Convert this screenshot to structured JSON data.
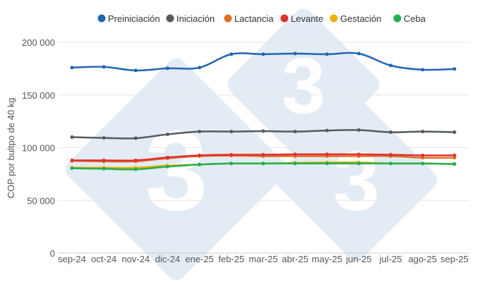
{
  "chart_data": {
    "type": "line",
    "title": "",
    "xlabel": "",
    "ylabel": "COP por bultpo de 40 kg",
    "ylim": [
      0,
      200000
    ],
    "yticks": [
      0,
      50000,
      100000,
      150000,
      200000
    ],
    "ytick_labels": [
      "0",
      "50 000",
      "100 000",
      "150 000",
      "200 000"
    ],
    "grid": true,
    "legend_position": "top",
    "categories": [
      "sep-24",
      "oct-24",
      "nov-24",
      "dic-24",
      "ene-25",
      "feb-25",
      "mar-25",
      "abr-25",
      "may-25",
      "jun-25",
      "jul-25",
      "ago-25",
      "sep-25"
    ],
    "series": [
      {
        "name": "Preiniciación",
        "color": "#2166b0",
        "values": [
          176000,
          176700,
          173300,
          175300,
          176000,
          188700,
          188700,
          189300,
          188700,
          189300,
          178000,
          174000,
          174700
        ]
      },
      {
        "name": "Iniciación",
        "color": "#555a60",
        "values": [
          110000,
          109300,
          109000,
          112700,
          115300,
          115300,
          115700,
          115300,
          116300,
          116700,
          114700,
          115300,
          114700
        ]
      },
      {
        "name": "Lactancia",
        "color": "#e07020",
        "values": [
          87500,
          87000,
          87000,
          90000,
          92000,
          92500,
          92000,
          92000,
          92000,
          92000,
          92000,
          90500,
          90500
        ]
      },
      {
        "name": "Levante",
        "color": "#e03030",
        "values": [
          88000,
          88000,
          88000,
          90700,
          92700,
          93300,
          93300,
          93700,
          93700,
          93700,
          93300,
          92700,
          92700
        ]
      },
      {
        "name": "Gestación",
        "color": "#f0b000",
        "values": [
          81000,
          81000,
          81000,
          83000,
          84000,
          85000,
          85000,
          85500,
          86000,
          86000,
          85000,
          85000,
          84500
        ]
      },
      {
        "name": "Ceba",
        "color": "#20b050",
        "values": [
          80500,
          80000,
          79500,
          82000,
          84000,
          85000,
          85000,
          85000,
          85000,
          85000,
          85000,
          85000,
          84500
        ]
      }
    ],
    "watermark_text": "3"
  }
}
